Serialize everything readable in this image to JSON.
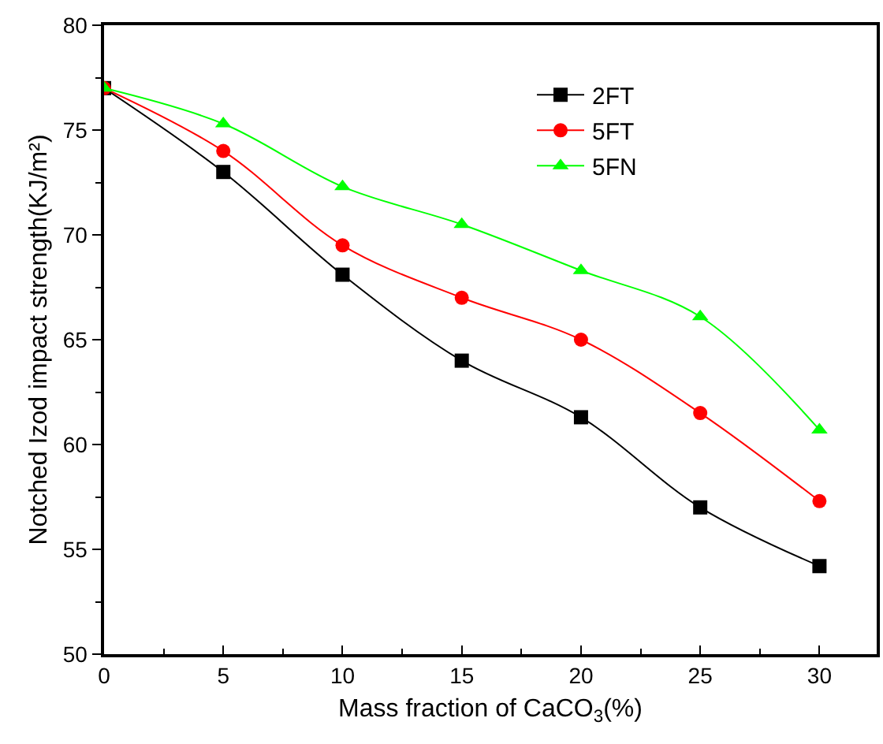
{
  "chart_data": {
    "type": "line",
    "xlabel": "Mass fraction of CaCO$_{3}$(%)",
    "ylabel": "Notched Izod impact strength(KJ/m²)",
    "x": [
      0,
      5,
      10,
      15,
      20,
      25,
      30
    ],
    "series": [
      {
        "name": "2FT",
        "color": "#000000",
        "marker": "square",
        "values": [
          77.0,
          73.0,
          68.1,
          64.0,
          61.3,
          57.0,
          54.2
        ]
      },
      {
        "name": "5FT",
        "color": "#ff0000",
        "marker": "circle",
        "values": [
          77.0,
          74.0,
          69.5,
          67.0,
          65.0,
          61.5,
          57.3
        ]
      },
      {
        "name": "5FN",
        "color": "#00ff00",
        "marker": "triangle",
        "values": [
          77.0,
          75.3,
          72.3,
          70.5,
          68.3,
          66.1,
          60.7
        ]
      }
    ],
    "xlim": [
      0,
      32.4
    ],
    "xticks": [
      0,
      5,
      10,
      15,
      20,
      25,
      30
    ],
    "ylim": [
      50,
      80
    ],
    "yticks": [
      50,
      55,
      60,
      65,
      70,
      75,
      80
    ],
    "legend": "top right",
    "line_style": "solid"
  }
}
